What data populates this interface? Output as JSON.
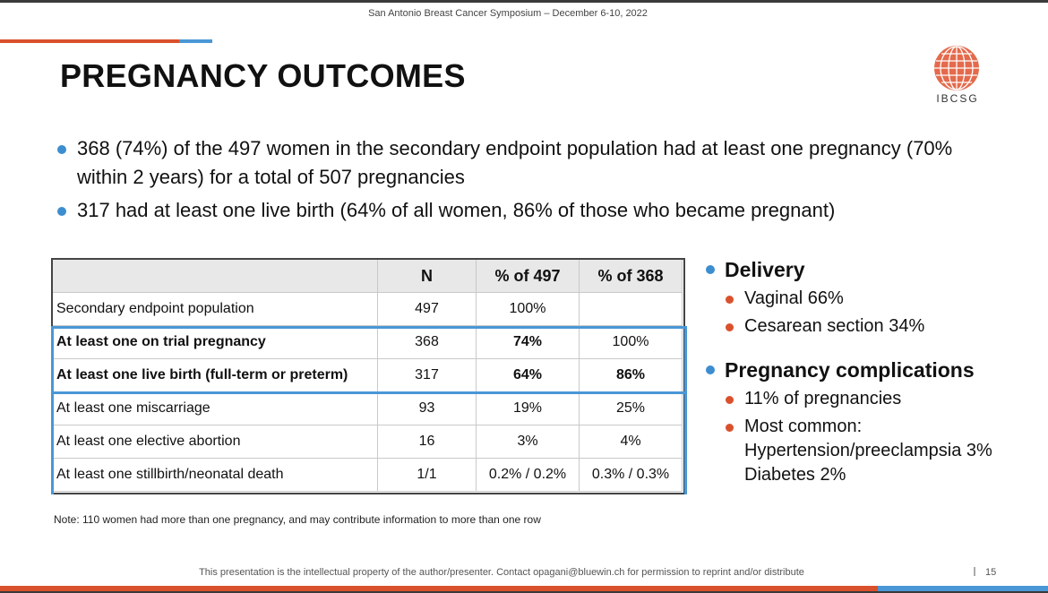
{
  "header": {
    "symposium": "San Antonio Breast Cancer Symposium – December 6-10, 2022"
  },
  "title": "PREGNANCY OUTCOMES",
  "logo": {
    "text": "IBCSG",
    "color": "#e46a4c"
  },
  "bullets": [
    "368 (74%) of the 497 women in the secondary endpoint population had at least one pregnancy (70% within 2 years) for a total of 507 pregnancies",
    "317 had at least one live birth (64% of all women, 86% of those who became pregnant)"
  ],
  "table": {
    "headers": [
      "",
      "N",
      "% of 497",
      "% of 368"
    ],
    "rows": [
      {
        "label": "Secondary endpoint population",
        "n": "497",
        "p497": "100%",
        "p368": ""
      },
      {
        "label": "At least one on trial pregnancy",
        "n": "368",
        "p497": "74%",
        "p368": "100%"
      },
      {
        "label": "At least one live birth (full-term or preterm)",
        "n": "317",
        "p497": "64%",
        "p368": "86%"
      },
      {
        "label": "At least one miscarriage",
        "n": "93",
        "p497": "19%",
        "p368": "25%"
      },
      {
        "label": "At least one elective abortion",
        "n": "16",
        "p497": "3%",
        "p368": "4%"
      },
      {
        "label": "At least one stillbirth/neonatal death",
        "n": "1/1",
        "p497": "0.2% / 0.2%",
        "p368": "0.3% / 0.3%"
      }
    ]
  },
  "side": {
    "delivery": {
      "heading": "Delivery",
      "items": [
        "Vaginal 66%",
        "Cesarean section 34%"
      ]
    },
    "complications": {
      "heading": "Pregnancy complications",
      "items": [
        "11% of pregnancies"
      ],
      "most_common": {
        "label": "Most common:",
        "line1": "Hypertension/preeclampsia 3%",
        "line2": "Diabetes 2%"
      }
    }
  },
  "note": "Note: 110 women had more than one pregnancy, and may contribute information to more than one row",
  "footer": {
    "text": "This presentation is the intellectual property of the author/presenter. Contact opagani@bluewin.ch for permission to reprint and/or distribute",
    "page": "15"
  },
  "colors": {
    "accent_red": "#d9512c",
    "accent_blue": "#4a97d6",
    "header_gray": "#e8e8e8"
  }
}
